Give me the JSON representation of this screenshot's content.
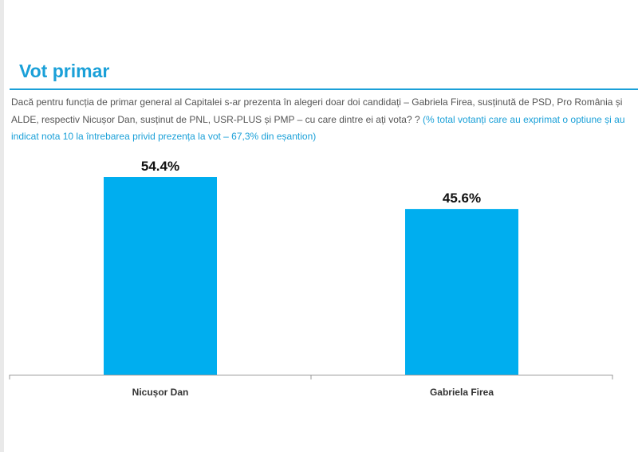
{
  "header": {
    "title": "Vot primar"
  },
  "question": {
    "text": "Dacă pentru funcția de primar general al Capitalei s-ar prezenta în alegeri doar doi candidați – Gabriela Firea, susținută de PSD, Pro România și ALDE, respectiv Nicușor Dan, susținut de PNL, USR-PLUS și PMP – cu care dintre ei ați vota? ?",
    "note": "(% total votanți care au exprimat o optiune și au indicat nota 10 la întrebarea privid prezența la vot – 67,3% din eșantion)"
  },
  "colors": {
    "accent": "#1aa0d8",
    "bar": "#00aeef"
  },
  "chart_data": {
    "type": "bar",
    "title": "",
    "xlabel": "",
    "ylabel": "",
    "categories": [
      "Nicușor Dan",
      "Gabriela Firea"
    ],
    "values": [
      54.4,
      45.6
    ],
    "value_labels": [
      "54.4%",
      "45.6%"
    ],
    "ylim": [
      0,
      60
    ],
    "grid": false,
    "legend": "none"
  }
}
